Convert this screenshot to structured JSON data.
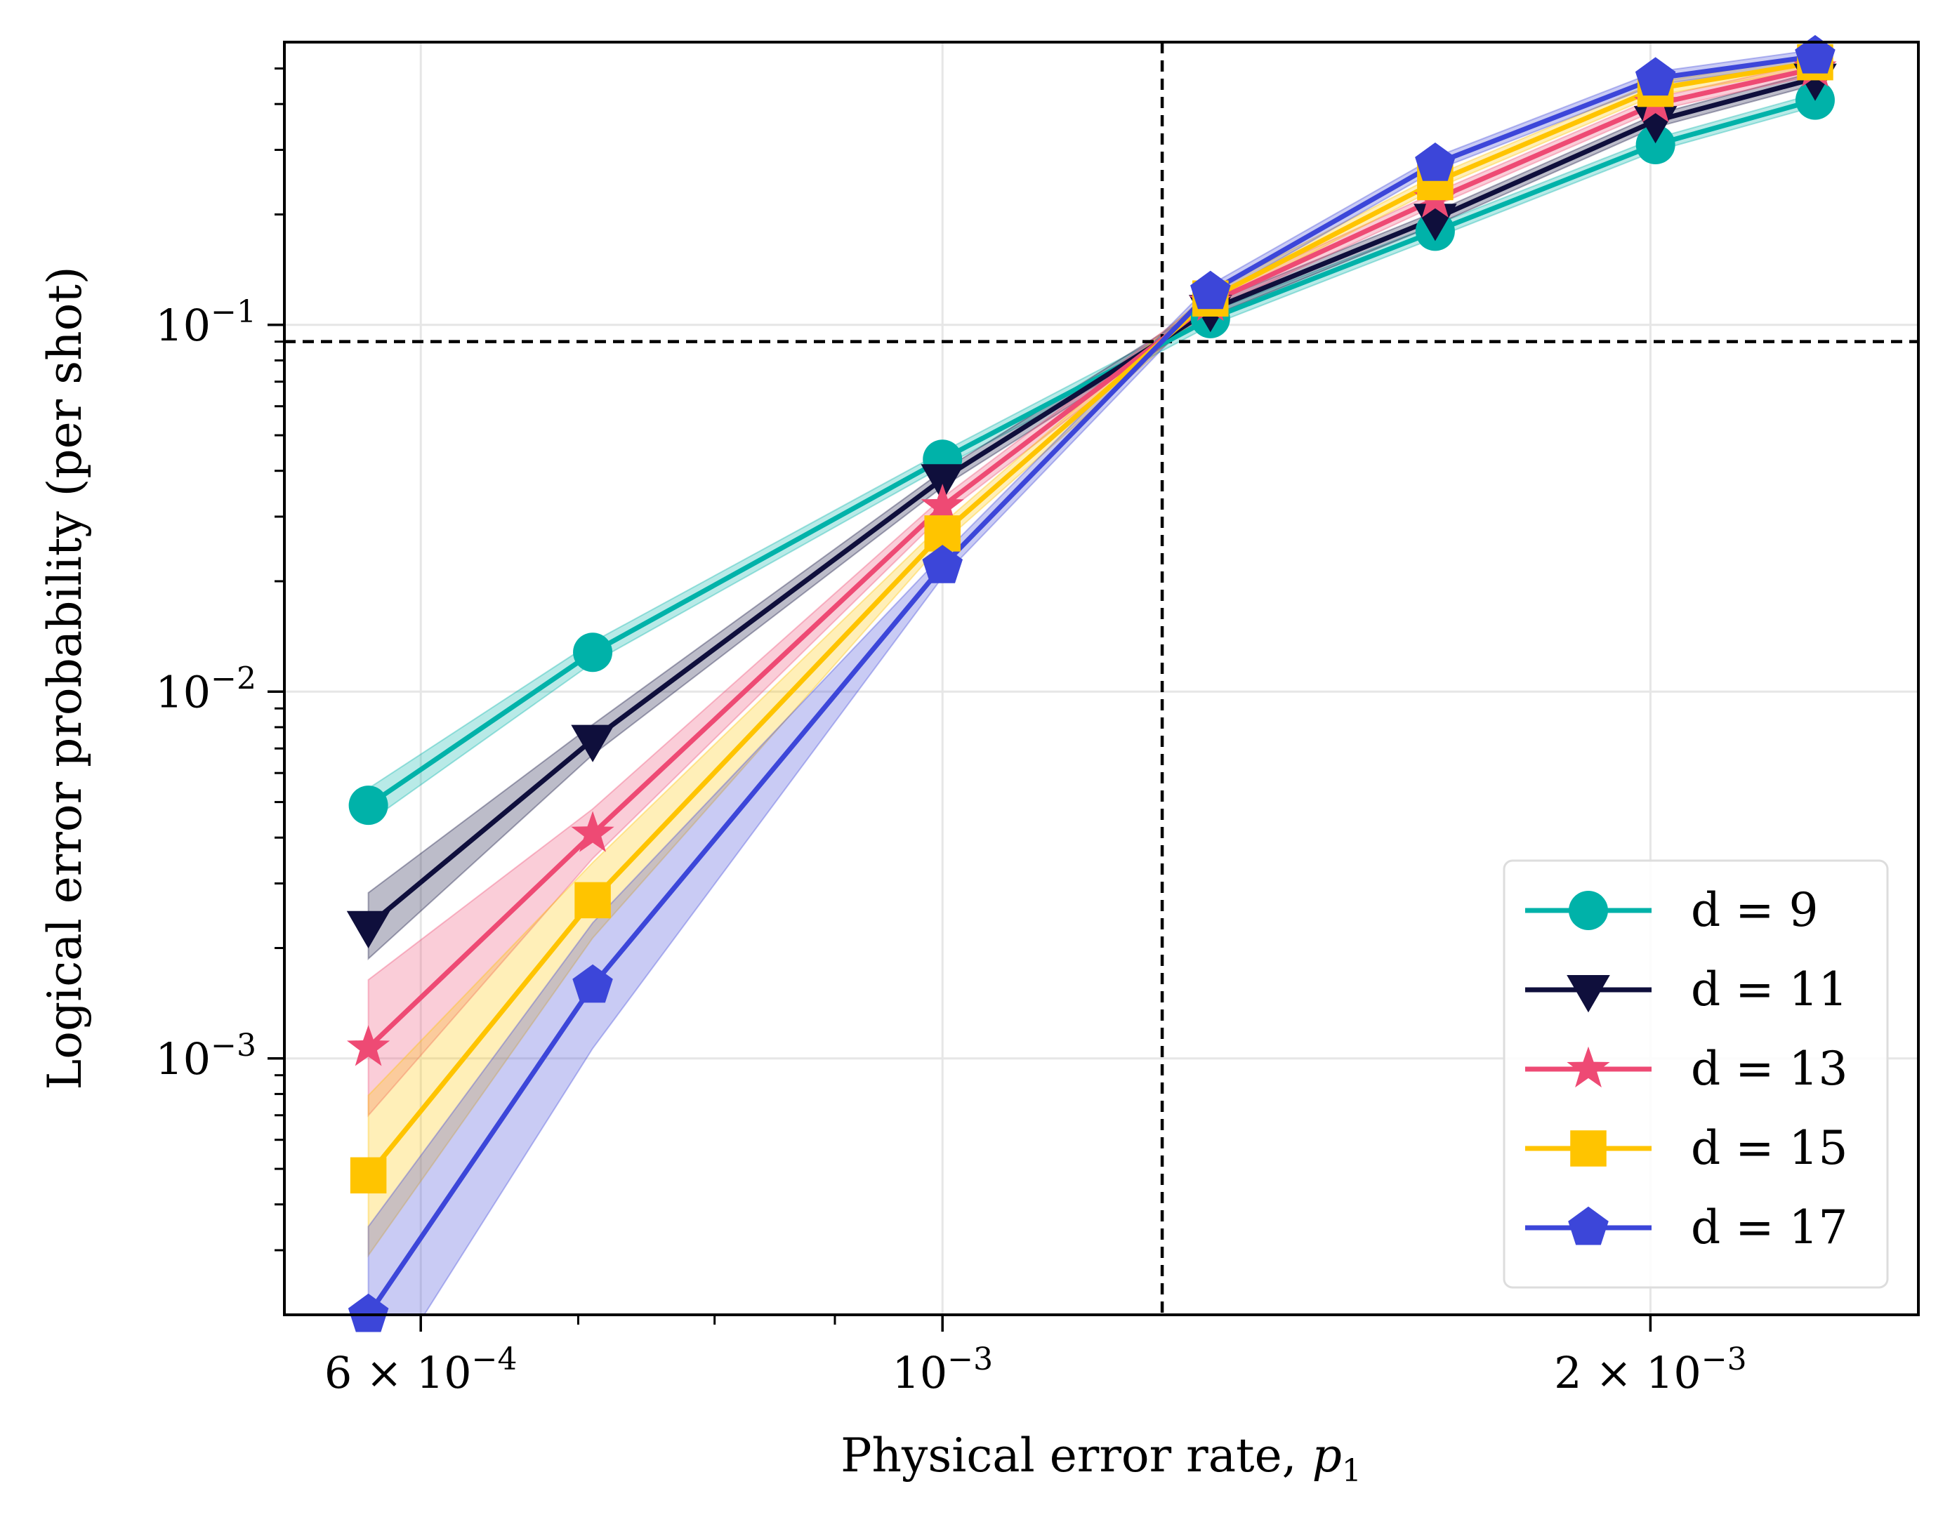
{
  "chart_data": {
    "type": "line",
    "xlabel": "Physical error rate,",
    "xlabel_symbol": "p",
    "xlabel_subscript": "1",
    "ylabel": "Logical error probability (per shot)",
    "x_scale": "log",
    "y_scale": "log",
    "xlim": [
      0.000525,
      0.0026
    ],
    "ylim": [
      0.0002,
      0.59
    ],
    "grid": true,
    "legend_position": "lower right",
    "x_ticks": [
      {
        "value": 0.0006,
        "mantissa": "6",
        "exp": "−4"
      },
      {
        "value": 0.001,
        "mantissa": "",
        "exp": "−3"
      },
      {
        "value": 0.002,
        "mantissa": "2",
        "exp": "−3"
      }
    ],
    "y_ticks": [
      {
        "value": 0.001,
        "exp": "−3"
      },
      {
        "value": 0.01,
        "exp": "−2"
      },
      {
        "value": 0.1,
        "exp": "−1"
      }
    ],
    "threshold": {
      "x": 0.00124,
      "y": 0.09
    },
    "x": [
      0.00057,
      0.00071,
      0.001,
      0.0013,
      0.00162,
      0.00201,
      0.00235
    ],
    "series": [
      {
        "name": "d = 9",
        "color": "#00b2a9",
        "marker": "circle",
        "values": [
          0.0049,
          0.0128,
          0.043,
          0.104,
          0.18,
          0.31,
          0.41
        ]
      },
      {
        "name": "d = 11",
        "color": "#0f0f3c",
        "marker": "triangle-down",
        "values": [
          0.0023,
          0.0074,
          0.038,
          0.11,
          0.195,
          0.36,
          0.47
        ]
      },
      {
        "name": "d = 13",
        "color": "#ee4a74",
        "marker": "star",
        "values": [
          0.00107,
          0.0041,
          0.032,
          0.115,
          0.22,
          0.4,
          0.5
        ]
      },
      {
        "name": "d = 15",
        "color": "#ffc400",
        "marker": "square",
        "values": [
          0.00048,
          0.0027,
          0.027,
          0.118,
          0.245,
          0.44,
          0.52
        ]
      },
      {
        "name": "d = 17",
        "color": "#3c46d9",
        "marker": "pentagon",
        "values": [
          0.0002,
          0.00158,
          0.022,
          0.123,
          0.275,
          0.47,
          0.54
        ]
      }
    ]
  }
}
